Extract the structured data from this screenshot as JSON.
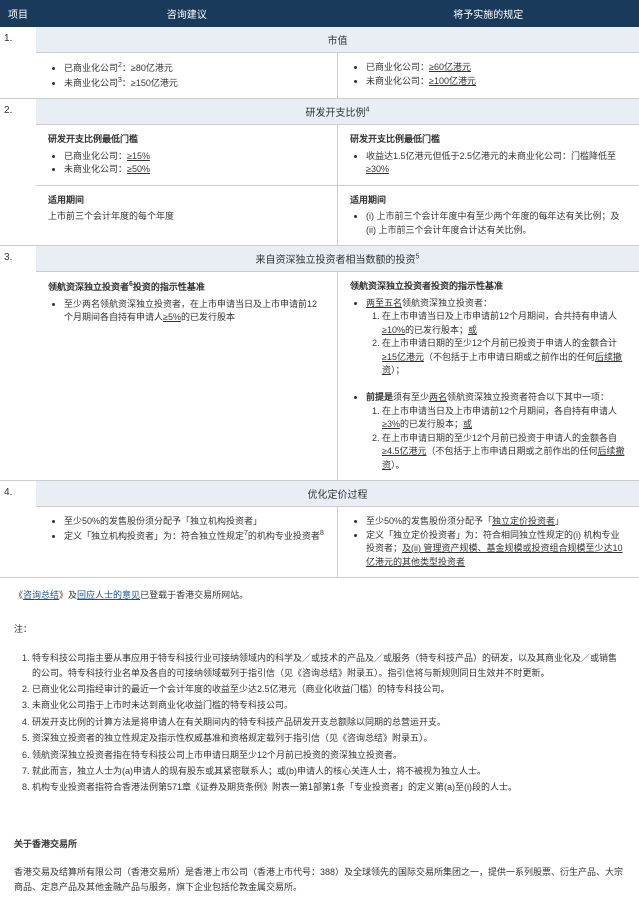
{
  "colors": {
    "header_bg": "#1a3a5c",
    "header_text": "#ffffff",
    "section_bg": "#e8eef4",
    "border": "#cccccc",
    "link": "#1a5490",
    "text": "#333333"
  },
  "headers": {
    "c1": "项目",
    "c2": "咨询建议",
    "c3": "将予实施的规定"
  },
  "r1": {
    "num": "1.",
    "title": "市值",
    "left_items": [
      "已商业化公司<sup>2</sup>：≥80亿港元",
      "未商业化公司<sup>3</sup>：≥150亿港元"
    ],
    "right_items": [
      "已商业化公司：<span class='underline'>≥60亿港元</span>",
      "未商业化公司：<span class='underline'>≥100亿港元</span>"
    ]
  },
  "r2": {
    "num": "2.",
    "title": "研发开支比例",
    "sup": "4",
    "left_head": "研发开支比例最低门槛",
    "left_items": [
      "已商业化公司：<span class='underline'>≥15%</span>",
      "未商业化公司：<span class='underline'>≥50%</span>"
    ],
    "right_head": "研发开支比例最低门槛",
    "right_items": [
      "收益达1.5亿港元但低于2.5亿港元的未商业化公司：门槛降低至<span class='underline'>≥30%</span>"
    ],
    "left_period_head": "适用期间",
    "left_period": "上市前三个会计年度的每个年度",
    "right_period_head": "适用期间",
    "right_period_items": [
      "(i) 上市前三个会计年度中有至少两个年度的每年达有关比例；及 (ii) 上市前三个会计年度合计达有关比例。"
    ]
  },
  "r3": {
    "num": "3.",
    "title": "来自资深独立投资者相当数额的投资",
    "sup": "5",
    "left_head": "领航资深独立投资者<sup>6</sup>投资的指示性基准",
    "left_items": [
      "至少两名领航资深独立投资者，在上市申请当日及上市申请前12个月期间各自持有申请人<span class='underline'>≥5%</span>的已发行股本"
    ],
    "right_head": "领航资深独立投资者投资的指示性基准",
    "right_block1_intro": "<span class='underline'>两至五名</span>领航资深独立投资者：",
    "right_block1_items": [
      "在上市申请当日及上市申请前12个月期间，合共持有申请人<span class='underline'>≥10%</span>的已发行股本；<span class='underline'>或</span>",
      "在上市申请日期的至少12个月前已投资于申请人的金额合计<span class='underline'>≥15亿港元</span>（不包括于上市申请日期或之前作出的任何<span class='underline'>后续撤资</span>）；"
    ],
    "right_block2_intro": "<span class='bold'>前提是</span>须有至少<span class='underline'>两名</span>领航资深独立投资者符合以下其中一项：",
    "right_block2_items": [
      "在上市申请当日及上市申请前12个月期间，各自持有申请人<span class='underline'>≥3%</span>的已发行股本；<span class='underline'>或</span>",
      "在上市申请日期的至少12个月前已投资于申请人的金额各自<span class='underline'>≥4.5亿港元</span>（不包括于上市申请日期或之前作出的任何<span class='underline'>后续撤资</span>）。"
    ]
  },
  "r4": {
    "num": "4.",
    "title": "优化定价过程",
    "left_items": [
      "至少50%的发售股份须分配予「独立机构投资者」",
      "定义「独立机构投资者」为：符合独立性规定<sup>7</sup>的机构专业投资者<sup>8</sup>"
    ],
    "right_items": [
      "至少50%的发售股份须分配予「<span class='underline'>独立定价投资者</span>」",
      "定义「独立定价投资者」为：符合相同独立性规定的(i) 机构专业投资者；<span class='underline'>及(ii) 管理资产规模、基金规模或投资组合规模至少达10亿港元的其他类型投资者</span>"
    ]
  },
  "footer_line": {
    "pre": "《",
    "link1": "咨询总结",
    "mid": "》及",
    "link2": "回应人士的意见",
    "post": "已登载于香港交易所网站。"
  },
  "notes_label": "注：",
  "notes": [
    "特专科技公司指主要从事应用于特专科技行业可接纳领域内的科学及／或技术的产品及／或服务（特专科技产品）的研发，以及其商业化及／或销售的公司。特专科技行业名单及各自的可接纳领域载列于指引信（见《咨询总结》附录五）。指引信将与新规则同日生效并不时更新。",
    "已商业化公司指经审计的最近一个会计年度的收益至少达2.5亿港元（商业化收益门槛）的特专科技公司。",
    "未商业化公司指于上市时未达到商业化收益门槛的特专科技公司。",
    "研发开支比例的计算方法是将申请人在有关期间内的特专科技产品研发开支总额除以同期的总营运开支。",
    "资深独立投资者的独立性规定及指示性权威基准和资格规定载列于指引信（见《咨询总结》附录五）。",
    "领航资深独立投资者指在特专科技公司上市申请日期至少12个月前已投资的资深独立投资者。",
    "就此而言，独立人士为(a)申请人的现有股东或其紧密联系人；或(b)申请人的核心关连人士，将不被视为独立人士。",
    "机构专业投资者指符合香港法例第571章《证券及期货条例》附表一第1部第1条「专业投资者」的定义第(a)至(i)段的人士。"
  ],
  "about_head": "关于香港交易所",
  "about_body": "香港交易及结算所有限公司（香港交易所）是香港上市公司（香港上市代号：388）及全球领先的国际交易所集团之一，提供一系列股票、衍生产品、大宗商品、定息产品及其他金融产品与服务，旗下企业包括伦敦金属交易所。"
}
